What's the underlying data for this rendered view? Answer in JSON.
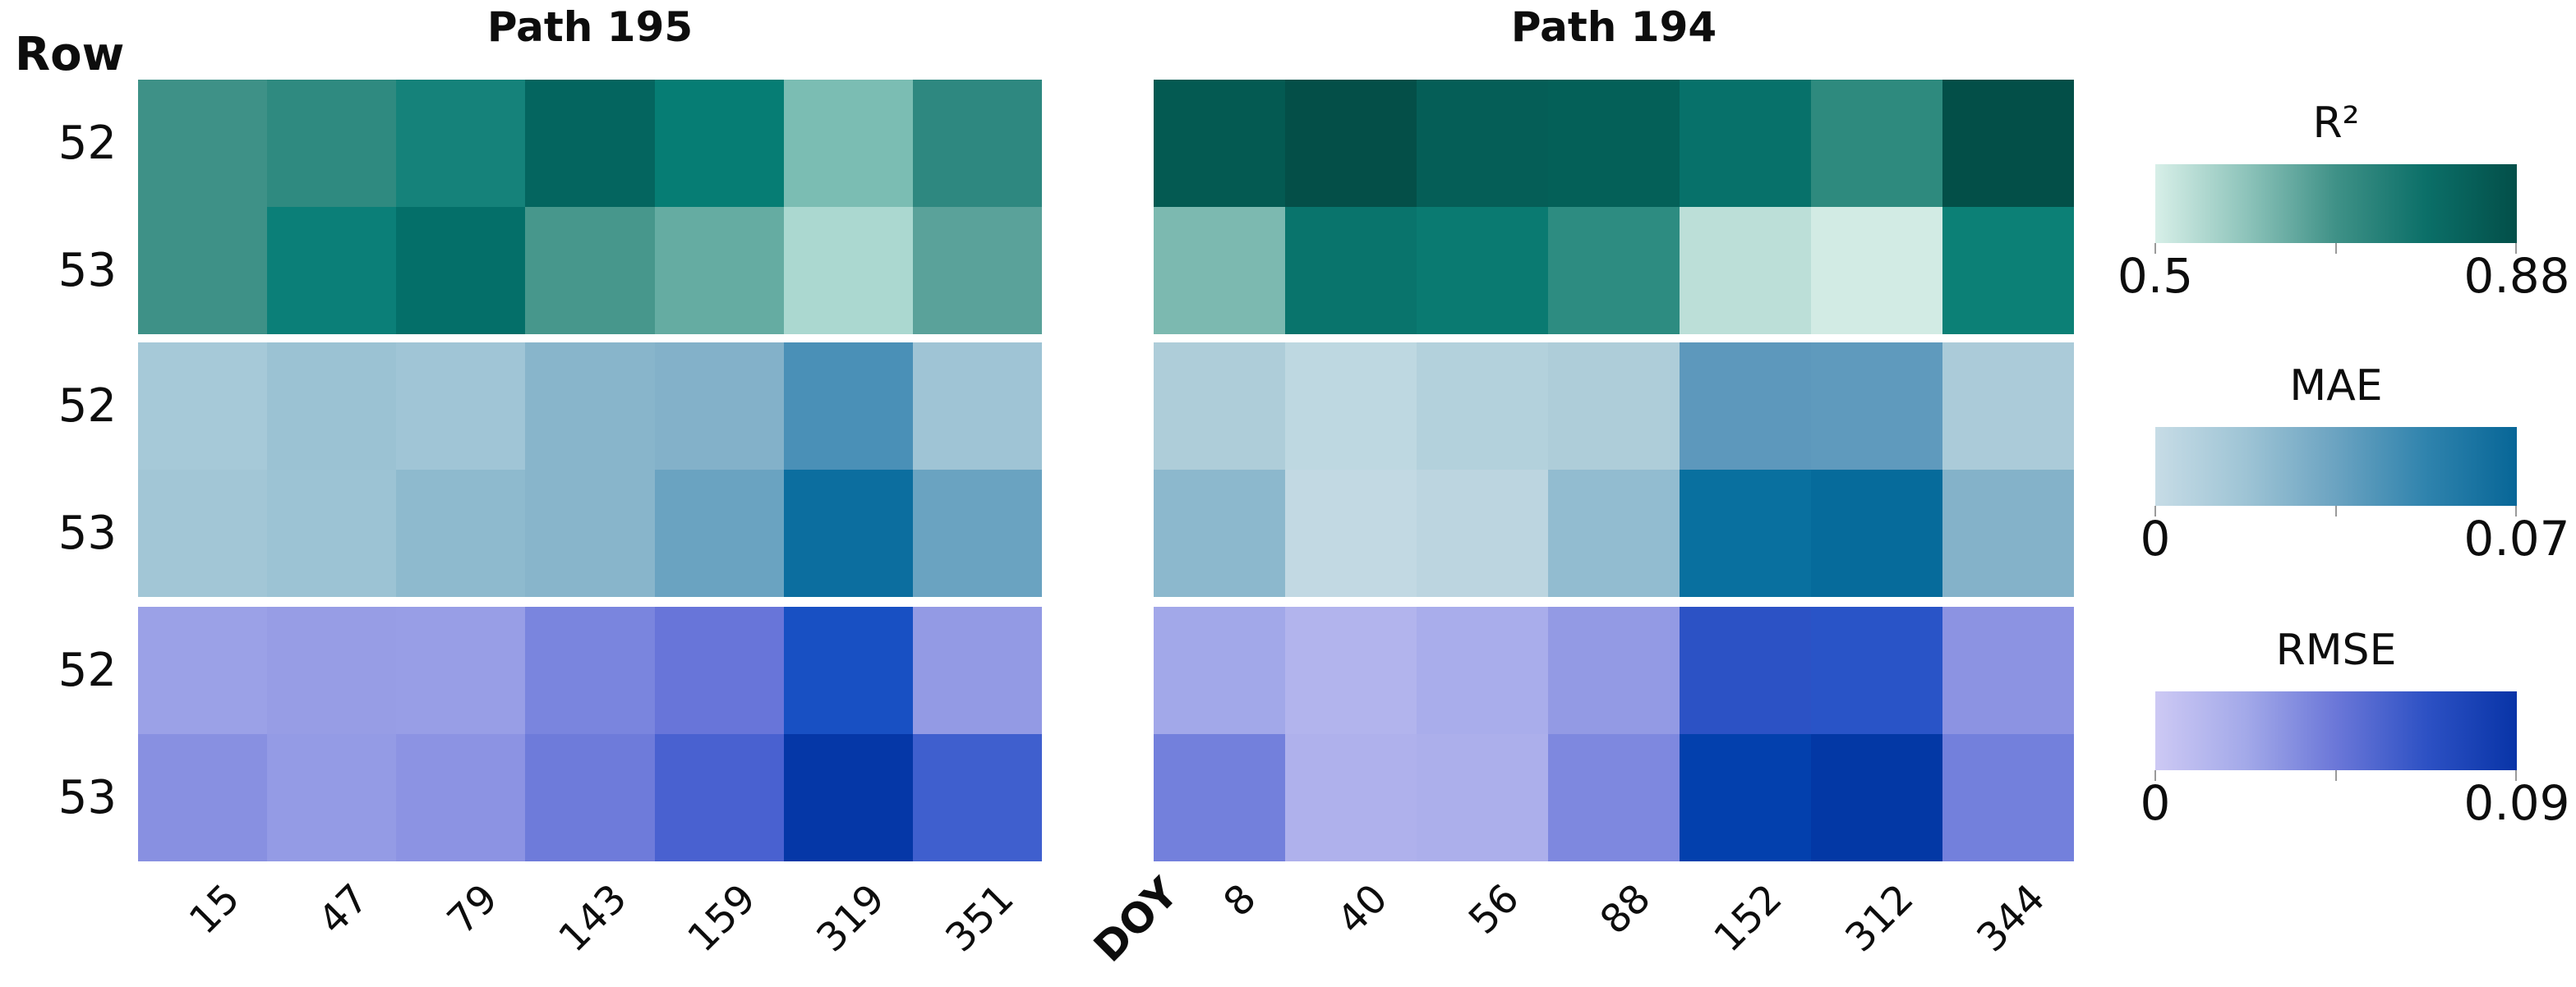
{
  "figure": {
    "row_axis_label": "Row",
    "x_axis_label": "DOY",
    "row_labels": [
      "52",
      "53"
    ],
    "background_color": "#ffffff",
    "legends": [
      {
        "title": "R²",
        "min": "0.5",
        "max": "0.88",
        "gradient": [
          "#d7efe8",
          "#8ec4bb",
          "#3f9187",
          "#0b6f68",
          "#034f49"
        ]
      },
      {
        "title": "MAE",
        "min": "0",
        "max": "0.07",
        "gradient": [
          "#c7dce6",
          "#9ec4d5",
          "#6ba3c1",
          "#2f83ad",
          "#076697"
        ]
      },
      {
        "title": "RMSE",
        "min": "0",
        "max": "0.09",
        "gradient": [
          "#cdc9f4",
          "#a3a9e9",
          "#6b77d8",
          "#2d51c4",
          "#0834a7"
        ]
      }
    ]
  },
  "chart_data": {
    "type": "heatmap",
    "description": "Per-scene accuracy metrics (R², MAE, RMSE) for Landsat Path 195 and Path 194, Rows 52-53, by day of year (DOY). Values estimated from the colorbars.",
    "panels": [
      {
        "title": "Path 195",
        "doy": [
          "15",
          "47",
          "79",
          "143",
          "159",
          "319",
          "351"
        ],
        "rows": [
          "52",
          "53"
        ],
        "metrics": [
          {
            "name": "R²",
            "scale_min": 0.5,
            "scale_max": 0.88,
            "values": [
              [
                0.7,
                0.71,
                0.75,
                0.84,
                0.78,
                0.58,
                0.73
              ],
              [
                0.7,
                0.78,
                0.82,
                0.68,
                0.63,
                0.54,
                0.66
              ]
            ],
            "colors": [
              [
                "#3E9187",
                "#2F8A80",
                "#15827A",
                "#04655F",
                "#067D74",
                "#7BBDB3",
                "#2E8880"
              ],
              [
                "#3E9187",
                "#0B7F78",
                "#046F69",
                "#47978C",
                "#65ACA2",
                "#ABD8D0",
                "#5AA29A"
              ]
            ]
          },
          {
            "name": "MAE",
            "scale_min": 0,
            "scale_max": 0.07,
            "values": [
              [
                0.022,
                0.027,
                0.025,
                0.033,
                0.035,
                0.052,
                0.026
              ],
              [
                0.024,
                0.026,
                0.031,
                0.033,
                0.042,
                0.066,
                0.042
              ]
            ],
            "colors": [
              [
                "#A6C9D8",
                "#9BC2D3",
                "#A0C5D6",
                "#88B5CB",
                "#83B1C9",
                "#4A90B7",
                "#9FC4D5"
              ],
              [
                "#A2C6D6",
                "#9CC3D4",
                "#8EBACE",
                "#88B5CB",
                "#6AA3C1",
                "#0C6E9F",
                "#6AA3C1"
              ]
            ]
          },
          {
            "name": "RMSE",
            "scale_min": 0,
            "scale_max": 0.09,
            "values": [
              [
                0.028,
                0.03,
                0.029,
                0.04,
                0.046,
                0.071,
                0.032
              ],
              [
                0.037,
                0.031,
                0.035,
                0.044,
                0.056,
                0.086,
                0.057
              ]
            ],
            "colors": [
              [
                "#9BA1E7",
                "#979DE5",
                "#989EE6",
                "#7A85DE",
                "#6875D9",
                "#1850C3",
                "#939AE4"
              ],
              [
                "#8890E1",
                "#949BE5",
                "#8C93E3",
                "#6E7BDA",
                "#4961D0",
                "#0537A7",
                "#3F5FCE"
              ]
            ]
          }
        ]
      },
      {
        "title": "Path 194",
        "doy": [
          "8",
          "40",
          "56",
          "88",
          "152",
          "312",
          "344"
        ],
        "rows": [
          "52",
          "53"
        ],
        "metrics": [
          {
            "name": "R²",
            "scale_min": 0.5,
            "scale_max": 0.88,
            "values": [
              [
                0.85,
                0.87,
                0.85,
                0.84,
                0.8,
                0.72,
                0.87
              ],
              [
                0.6,
                0.8,
                0.79,
                0.72,
                0.53,
                0.51,
                0.78
              ]
            ],
            "colors": [
              [
                "#045A52",
                "#044F48",
                "#055E57",
                "#046058",
                "#07716A",
                "#2E8A7E",
                "#034F48"
              ],
              [
                "#7CB9B0",
                "#09746C",
                "#0A7A71",
                "#2D8C81",
                "#BCDFD8",
                "#D2EBE4",
                "#0C8076"
              ]
            ]
          },
          {
            "name": "MAE",
            "scale_min": 0,
            "scale_max": 0.07,
            "values": [
              [
                0.018,
                0.011,
                0.015,
                0.018,
                0.047,
                0.046,
                0.02
              ],
              [
                0.032,
                0.01,
                0.013,
                0.029,
                0.065,
                0.067,
                0.035
              ]
            ],
            "colors": [
              [
                "#AECDD9",
                "#BED8E1",
                "#B3D1DC",
                "#AECDD9",
                "#5D98BC",
                "#5F9ABD",
                "#ABCBD9"
              ],
              [
                "#8CB8CD",
                "#C2D9E3",
                "#BCD5E0",
                "#92BCD0",
                "#09709F",
                "#066B9B",
                "#84B2C9"
              ]
            ]
          },
          {
            "name": "RMSE",
            "scale_min": 0,
            "scale_max": 0.09,
            "values": [
              [
                0.026,
                0.019,
                0.023,
                0.032,
                0.068,
                0.067,
                0.035
              ],
              [
                0.049,
                0.02,
                0.021,
                0.043,
                0.085,
                0.087,
                0.049
              ]
            ],
            "colors": [
              [
                "#A2A8E9",
                "#B2B4ED",
                "#A9ADEB",
                "#939AE4",
                "#2C52C5",
                "#2954C7",
                "#8C93E2"
              ],
              [
                "#7380DC",
                "#AFB1EC",
                "#ACAFEB",
                "#7E88DF",
                "#0340AD",
                "#0338A5",
                "#7380DC"
              ]
            ]
          }
        ]
      }
    ]
  }
}
